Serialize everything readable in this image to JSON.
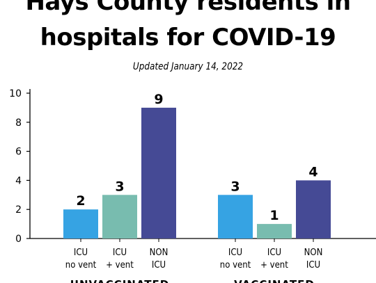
{
  "header": {
    "title_line1": "Hays County residents in",
    "title_line2": "hospitals for COVID-19",
    "subtitle": "Updated January 14, 2022"
  },
  "chart_data": {
    "type": "bar",
    "title": "Hays County residents in hospitals for COVID-19",
    "subtitle": "Updated January 14, 2022",
    "xlabel": "",
    "ylabel": "",
    "ylim": [
      0,
      10
    ],
    "yticks": [
      0,
      2,
      4,
      6,
      8,
      10
    ],
    "grid": false,
    "groups": [
      {
        "name": "UNVACCINATED",
        "bars": [
          {
            "label_top": "ICU",
            "label_bottom": "no vent",
            "value": 2,
            "color": "#36a3e3"
          },
          {
            "label_top": "ICU",
            "label_bottom": "+ vent",
            "value": 3,
            "color": "#78bcaf"
          },
          {
            "label_top": "NON",
            "label_bottom": "ICU",
            "value": 9,
            "color": "#454a95"
          }
        ]
      },
      {
        "name": "VACCINATED",
        "bars": [
          {
            "label_top": "ICU",
            "label_bottom": "no vent",
            "value": 3,
            "color": "#36a3e3"
          },
          {
            "label_top": "ICU",
            "label_bottom": "+ vent",
            "value": 1,
            "color": "#78bcaf"
          },
          {
            "label_top": "NON",
            "label_bottom": "ICU",
            "value": 4,
            "color": "#454a95"
          }
        ]
      }
    ]
  }
}
